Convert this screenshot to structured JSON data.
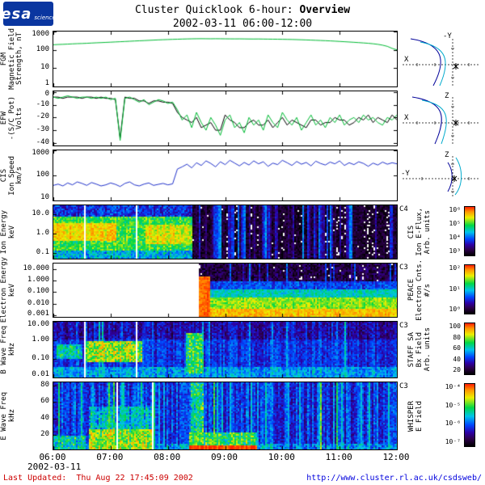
{
  "header": {
    "logo_text": "esa",
    "logo_sub": "science",
    "title_regular": "Cluster Quicklook 6-hour:",
    "title_bold": "Overview",
    "subtitle": "2002-03-11 06:00-12:00"
  },
  "time_axis": {
    "ticks": [
      "06:00",
      "07:00",
      "08:00",
      "09:00",
      "10:00",
      "11:00",
      "12:00"
    ],
    "date": "2002-03-11"
  },
  "orbit_plots": [
    {
      "top_label": "-Y",
      "left_label": "X"
    },
    {
      "top_label": "Z",
      "left_label": "X"
    },
    {
      "top_label": "Z",
      "left_label": "-Y"
    }
  ],
  "footer": {
    "label": "Last Updated:",
    "timestamp": "Thu Aug 22 17:45:09 2002",
    "url": "http://www.cluster.rl.ac.uk/csdsweb/"
  },
  "chart_data": {
    "type": "multi-panel time-series and spectrograms",
    "title": "Cluster Quicklook 6-hour: Overview",
    "date": "2002-03-11",
    "time_range": [
      "06:00",
      "12:00"
    ],
    "x_hours": {
      "start": 6,
      "end": 12,
      "step_minutes": 5
    },
    "panels": [
      {
        "id": "fgm",
        "kind": "line",
        "ylabel": [
          "FGM",
          "Magnetic Field",
          "Strength, nT"
        ],
        "yscale": "log",
        "ymin": 1,
        "ymax": 1000,
        "yticks": [
          {
            "v": 1000,
            "l": "1000"
          },
          {
            "v": 100,
            "l": "100"
          },
          {
            "v": 10,
            "l": "10"
          },
          {
            "v": 1,
            "l": "1"
          }
        ],
        "series": [
          {
            "name": "B magnitude",
            "color": "#00bb33",
            "values": [
              190,
              196,
              200,
              206,
              212,
              218,
              222,
              228,
              235,
              242,
              248,
              255,
              262,
              270,
              278,
              286,
              295,
              304,
              312,
              320,
              330,
              340,
              350,
              358,
              366,
              374,
              380,
              388,
              394,
              400,
              404,
              406,
              404,
              402,
              405,
              403,
              400,
              398,
              396,
              398,
              395,
              392,
              390,
              392,
              388,
              385,
              382,
              380,
              376,
              372,
              368,
              362,
              355,
              348,
              340,
              332,
              324,
              316,
              308,
              298,
              288,
              278,
              268,
              258,
              248,
              238,
              228,
              215,
              200,
              180,
              155,
              120,
              100
            ]
          }
        ]
      },
      {
        "id": "efw",
        "kind": "line",
        "ylabel": [
          "EFW",
          "-(S/C Pot)",
          "Volts"
        ],
        "yscale": "linear",
        "ymin": -42,
        "ymax": 0.5,
        "yticks": [
          {
            "v": 0,
            "l": "0"
          },
          {
            "v": -10,
            "l": "-10"
          },
          {
            "v": -20,
            "l": "-20"
          },
          {
            "v": -30,
            "l": "-30"
          },
          {
            "v": -40,
            "l": "-40"
          }
        ],
        "series": [
          {
            "name": "C1",
            "color": "#000000",
            "values": [
              -4,
              -4,
              -5,
              -4,
              -4,
              -4,
              -5,
              -4,
              -4,
              -5,
              -4,
              -5,
              -5,
              -6,
              -36,
              -4,
              -5,
              -5,
              -7,
              -7,
              -9,
              -7,
              -7,
              -8,
              -8,
              -9,
              -16,
              -20,
              -22,
              -24,
              -20,
              -28,
              -26,
              -24,
              -30,
              -30,
              -18,
              -22,
              -24,
              -28,
              -28,
              -24,
              -22,
              -26,
              -26,
              -22,
              -28,
              -24,
              -20,
              -26,
              -22,
              -24,
              -26,
              -28,
              -22,
              -22,
              -26,
              -24,
              -24,
              -20,
              -22,
              -22,
              -26,
              -24,
              -20,
              -22,
              -18,
              -24,
              -20,
              -22,
              -24,
              -18,
              -22
            ]
          },
          {
            "name": "C3",
            "color": "#00bb33",
            "values": [
              -4,
              -5,
              -4,
              -3,
              -4,
              -5,
              -4,
              -4,
              -5,
              -4,
              -5,
              -4,
              -6,
              -5,
              -38,
              -5,
              -4,
              -6,
              -8,
              -6,
              -10,
              -8,
              -6,
              -7,
              -9,
              -8,
              -14,
              -22,
              -18,
              -28,
              -16,
              -24,
              -30,
              -20,
              -26,
              -34,
              -22,
              -18,
              -28,
              -24,
              -32,
              -20,
              -26,
              -22,
              -30,
              -18,
              -24,
              -28,
              -16,
              -22,
              -26,
              -20,
              -30,
              -24,
              -18,
              -26,
              -22,
              -28,
              -20,
              -24,
              -18,
              -26,
              -22,
              -20,
              -24,
              -18,
              -22,
              -20,
              -24,
              -26,
              -20,
              -22,
              -18
            ]
          }
        ]
      },
      {
        "id": "cis_speed",
        "kind": "line",
        "ylabel": [
          "CIS",
          "Ion Speed",
          "km/s"
        ],
        "yscale": "log",
        "ymin": 10,
        "ymax": 1000,
        "yticks": [
          {
            "v": 1000,
            "l": "1000"
          },
          {
            "v": 100,
            "l": "100"
          },
          {
            "v": 10,
            "l": "10"
          }
        ],
        "series": [
          {
            "name": "ion bulk speed",
            "color": "#2233cc",
            "values": [
              40,
              45,
              38,
              50,
              42,
              55,
              48,
              40,
              52,
              45,
              38,
              42,
              50,
              44,
              36,
              48,
              55,
              42,
              38,
              45,
              50,
              40,
              44,
              48,
              42,
              46,
              180,
              220,
              280,
              200,
              320,
              250,
              380,
              300,
              220,
              350,
              270,
              400,
              310,
              240,
              330,
              260,
              380,
              290,
              350,
              230,
              310,
              270,
              400,
              320,
              250,
              360,
              280,
              330,
              240,
              370,
              300,
              260,
              340,
              290,
              380,
              250,
              320,
              270,
              350,
              300,
              230,
              310,
              260,
              340,
              280,
              320,
              290
            ]
          }
        ]
      },
      {
        "id": "ion_energy",
        "kind": "spectrogram",
        "ylabel": [
          "Ion Energy",
          "keV"
        ],
        "yscale": "log",
        "ymin": 0.05,
        "ymax": 30,
        "yticks": [
          {
            "v": 10,
            "l": "10.0"
          },
          {
            "v": 1,
            "l": "1.0"
          },
          {
            "v": 0.1,
            "l": "0.1"
          }
        ],
        "description": "High broadband ion flux 0.1-10 keV until ~08:25 (magnetosheath); after that mostly no/low flux with intermittent narrow bursts (magnetosphere).",
        "cbar": {
          "tag": "C4",
          "ticks": [
            "10⁶",
            "10⁵",
            "10⁴",
            "10³"
          ],
          "title": [
            "CIS",
            "Ion E-Flux,",
            "Arb. units"
          ]
        },
        "col_noise": 0.04,
        "features": [
          {
            "t": [
              6,
              8.42
            ],
            "y": [
              0.05,
              30
            ],
            "v": 0.45,
            "n": 0.12
          },
          {
            "t": [
              6,
              8.42
            ],
            "y": [
              8,
              30
            ],
            "v": 0.3,
            "n": 0.1
          },
          {
            "t": [
              6,
              8.42
            ],
            "y": [
              0.15,
              8
            ],
            "v": 0.62,
            "n": 0.1
          },
          {
            "t": [
              6,
              7.1
            ],
            "y": [
              0.5,
              4
            ],
            "v": 0.78,
            "n": 0.07
          },
          {
            "t": [
              7.6,
              8.42
            ],
            "y": [
              0.3,
              3
            ],
            "v": 0.74,
            "n": 0.08
          },
          {
            "t": [
              8.42,
              12
            ],
            "y": [
              0.05,
              30
            ],
            "v": 0.07,
            "n": 0.07
          }
        ],
        "stripes": {
          "t": [
            8.42,
            12
          ],
          "count": 55,
          "wmin": 0.01,
          "wmax": 0.05,
          "vmin": 0.15,
          "vmax": 0.42
        },
        "gaps": [
          [
            6.53,
            6.555
          ],
          [
            7.42,
            7.445
          ]
        ]
      },
      {
        "id": "electron_energy",
        "kind": "spectrogram",
        "ylabel": [
          "Electron Energy",
          "keV"
        ],
        "yscale": "log",
        "ymin": 0.0007,
        "ymax": 30,
        "yticks": [
          {
            "v": 10,
            "l": "10.000"
          },
          {
            "v": 1,
            "l": "1.000"
          },
          {
            "v": 0.1,
            "l": "0.100"
          },
          {
            "v": 0.01,
            "l": "0.010"
          },
          {
            "v": 0.001,
            "l": "0.001"
          }
        ],
        "description": "No data before ~08:30; afterwards intense low-energy electron counts (bright band below ~0.1 keV) with an initial broadband burst near 08:30 and dark high-energy range.",
        "cbar": {
          "tag": "C3",
          "ticks": [
            "10²",
            "10¹",
            "10⁰"
          ],
          "title": [
            "PEACE",
            "Electron Cnts.",
            "#/s"
          ]
        },
        "col_noise": 0.03,
        "features": [
          {
            "t": [
              8.52,
              12
            ],
            "y": [
              0.0007,
              30
            ],
            "v": 0.1,
            "n": 0.09
          },
          {
            "t": [
              8.52,
              12
            ],
            "y": [
              0.2,
              0.9
            ],
            "v": 0.32,
            "n": 0.08
          },
          {
            "t": [
              8.52,
              12
            ],
            "y": [
              0.04,
              0.2
            ],
            "v": 0.5,
            "n": 0.08
          },
          {
            "t": [
              8.52,
              12
            ],
            "y": [
              0.004,
              0.04
            ],
            "v": 0.68,
            "n": 0.07
          },
          {
            "t": [
              8.52,
              12
            ],
            "y": [
              0.0007,
              0.004
            ],
            "v": 0.8,
            "n": 0.06
          },
          {
            "t": [
              8.52,
              8.72
            ],
            "y": [
              0.0007,
              3
            ],
            "v": 0.92,
            "n": 0.06
          }
        ],
        "stripes": {
          "t": [
            8.72,
            12
          ],
          "count": 28,
          "wmin": 0.008,
          "wmax": 0.02,
          "vmin": 0.15,
          "vmax": 0.35
        },
        "gaps": []
      },
      {
        "id": "b_wave",
        "kind": "spectrogram",
        "ylabel": [
          "B Wave Freq",
          "kHz"
        ],
        "yscale": "log",
        "ymin": 0.01,
        "ymax": 10,
        "yticks": [
          {
            "v": 10,
            "l": "10.00"
          },
          {
            "v": 1,
            "l": "1.00"
          },
          {
            "v": 0.1,
            "l": "0.10"
          },
          {
            "v": 0.01,
            "l": "0.01"
          }
        ],
        "description": "Blue broadband magnetic wave background; enhanced green emissions 0.1-1 kHz between ~06:35-07:35 and a bright column near 08:20; two white data gaps.",
        "cbar": {
          "tag": "C3",
          "ticks": [
            "100",
            "80",
            "60",
            "40",
            "20"
          ],
          "title": [
            "STAFF SA",
            "Bx Field",
            "Arb. units"
          ]
        },
        "col_noise": 0.06,
        "features": [
          {
            "t": [
              6,
              12
            ],
            "y": [
              0.01,
              10
            ],
            "v": 0.3,
            "n": 0.07
          },
          {
            "t": [
              6,
              12
            ],
            "y": [
              1.2,
              10
            ],
            "v": 0.22,
            "n": 0.09
          },
          {
            "t": [
              6,
              12
            ],
            "y": [
              0.01,
              0.04
            ],
            "v": 0.42,
            "n": 0.09
          },
          {
            "t": [
              6.05,
              6.5
            ],
            "y": [
              0.12,
              0.7
            ],
            "v": 0.52,
            "n": 0.12
          },
          {
            "t": [
              6.55,
              7.55
            ],
            "y": [
              0.08,
              1.0
            ],
            "v": 0.68,
            "n": 0.14
          },
          {
            "t": [
              8.3,
              8.6
            ],
            "y": [
              0.02,
              2.5
            ],
            "v": 0.6,
            "n": 0.14
          }
        ],
        "stripes": {
          "t": [
            6,
            12
          ],
          "count": 40,
          "wmin": 0.008,
          "wmax": 0.02,
          "vmin": 0.3,
          "vmax": 0.5
        },
        "gaps": [
          [
            6.53,
            6.555
          ],
          [
            7.42,
            7.445
          ]
        ]
      },
      {
        "id": "e_wave",
        "kind": "spectrogram",
        "ylabel": [
          "E Wave Freq",
          "kHz"
        ],
        "yscale": "linear",
        "ymin": 2,
        "ymax": 84,
        "yticks": [
          {
            "v": 80,
            "l": "80"
          },
          {
            "v": 60,
            "l": "60"
          },
          {
            "v": 40,
            "l": "40"
          },
          {
            "v": 20,
            "l": "20"
          }
        ],
        "description": "Striated electric wave spectrum; strong green emission below ~30 kHz 06:35-07:45, intense red band below ~8 kHz 08:20-09:30, vertical cyan striations throughout.",
        "cbar": {
          "tag": "C3",
          "ticks": [
            "10⁻⁴",
            "10⁻⁵",
            "10⁻⁶",
            "10⁻⁷"
          ],
          "title": [
            "WHISPER",
            "E Field"
          ]
        },
        "col_noise": 0.09,
        "features": [
          {
            "t": [
              6,
              12
            ],
            "y": [
              2,
              84
            ],
            "v": 0.3,
            "n": 0.08
          },
          {
            "t": [
              6,
              12
            ],
            "y": [
              2,
              10
            ],
            "v": 0.4,
            "n": 0.12
          },
          {
            "t": [
              6,
              6.55
            ],
            "y": [
              2,
              20
            ],
            "v": 0.5,
            "n": 0.15
          },
          {
            "t": [
              6.6,
              7.75
            ],
            "y": [
              28,
              55
            ],
            "v": 0.46,
            "n": 0.13
          },
          {
            "t": [
              6.6,
              7.75
            ],
            "y": [
              2,
              28
            ],
            "v": 0.68,
            "n": 0.13
          },
          {
            "t": [
              8.35,
              9.55
            ],
            "y": [
              8,
              24
            ],
            "v": 0.6,
            "n": 0.13
          },
          {
            "t": [
              8.4,
              8.62
            ],
            "y": [
              24,
              84
            ],
            "v": 0.52,
            "n": 0.18
          },
          {
            "t": [
              8.35,
              9.55
            ],
            "y": [
              2,
              8
            ],
            "v": 0.96,
            "n": 0.04
          }
        ],
        "stripes": {
          "t": [
            6,
            12
          ],
          "count": 70,
          "wmin": 0.008,
          "wmax": 0.03,
          "vmin": 0.35,
          "vmax": 0.6
        },
        "gaps": [
          [
            7.08,
            7.105
          ],
          [
            7.72,
            7.745
          ]
        ]
      }
    ]
  }
}
